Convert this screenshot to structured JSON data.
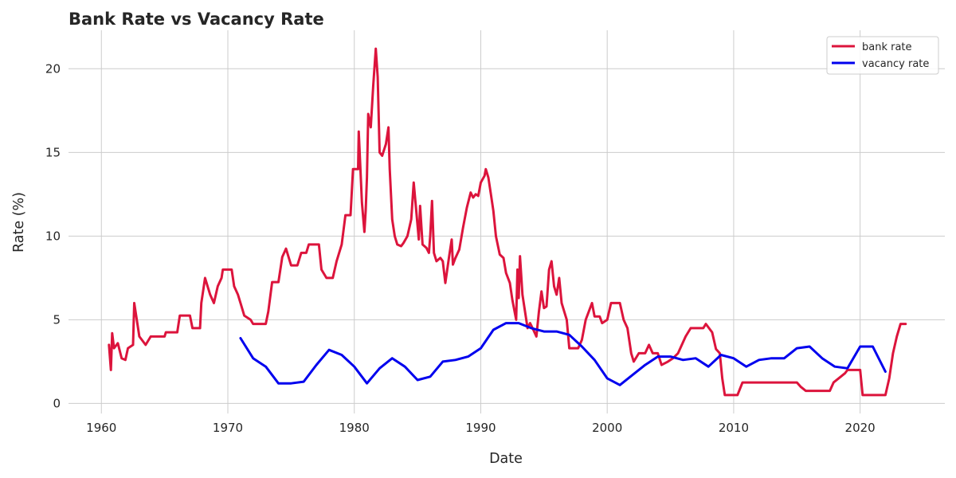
{
  "chart_data": {
    "type": "line",
    "title": "Bank Rate vs Vacancy Rate",
    "xlabel": "Date",
    "ylabel": "Rate (%)",
    "xlim": [
      1957.4,
      2026.7
    ],
    "ylim": [
      -0.6,
      22.3
    ],
    "x_ticks": [
      1960,
      1970,
      1980,
      1990,
      2000,
      2010,
      2020
    ],
    "y_ticks": [
      0,
      5,
      10,
      15,
      20
    ],
    "grid": true,
    "legend_position": "top-right",
    "series": [
      {
        "name": "bank rate",
        "color": "#dc143c",
        "points": [
          [
            1960.6,
            3.5
          ],
          [
            1960.75,
            2.0
          ],
          [
            1960.85,
            4.2
          ],
          [
            1961.0,
            3.3
          ],
          [
            1961.3,
            3.6
          ],
          [
            1961.6,
            2.7
          ],
          [
            1961.9,
            2.6
          ],
          [
            1962.1,
            3.3
          ],
          [
            1962.5,
            3.5
          ],
          [
            1962.6,
            6.0
          ],
          [
            1962.8,
            5.0
          ],
          [
            1963.0,
            4.0
          ],
          [
            1963.5,
            3.5
          ],
          [
            1963.9,
            4.0
          ],
          [
            1965.0,
            4.0
          ],
          [
            1965.1,
            4.25
          ],
          [
            1966.0,
            4.25
          ],
          [
            1966.2,
            5.25
          ],
          [
            1967.0,
            5.25
          ],
          [
            1967.2,
            4.5
          ],
          [
            1967.8,
            4.5
          ],
          [
            1967.9,
            6.0
          ],
          [
            1968.2,
            7.5
          ],
          [
            1968.6,
            6.5
          ],
          [
            1968.9,
            6.0
          ],
          [
            1969.2,
            7.0
          ],
          [
            1969.5,
            7.5
          ],
          [
            1969.6,
            8.0
          ],
          [
            1970.3,
            8.0
          ],
          [
            1970.5,
            7.0
          ],
          [
            1970.8,
            6.5
          ],
          [
            1971.0,
            6.0
          ],
          [
            1971.3,
            5.25
          ],
          [
            1971.8,
            5.0
          ],
          [
            1972.0,
            4.75
          ],
          [
            1972.5,
            4.75
          ],
          [
            1973.0,
            4.75
          ],
          [
            1973.2,
            5.5
          ],
          [
            1973.5,
            7.25
          ],
          [
            1974.0,
            7.25
          ],
          [
            1974.3,
            8.75
          ],
          [
            1974.6,
            9.25
          ],
          [
            1975.0,
            8.25
          ],
          [
            1975.5,
            8.25
          ],
          [
            1975.8,
            9.0
          ],
          [
            1976.2,
            9.0
          ],
          [
            1976.4,
            9.5
          ],
          [
            1977.2,
            9.5
          ],
          [
            1977.4,
            8.0
          ],
          [
            1977.8,
            7.5
          ],
          [
            1978.3,
            7.5
          ],
          [
            1978.6,
            8.5
          ],
          [
            1979.0,
            9.5
          ],
          [
            1979.3,
            11.25
          ],
          [
            1979.7,
            11.25
          ],
          [
            1979.9,
            14.0
          ],
          [
            1980.3,
            14.0
          ],
          [
            1980.35,
            16.25
          ],
          [
            1980.6,
            12.0
          ],
          [
            1980.8,
            10.25
          ],
          [
            1980.9,
            11.5
          ],
          [
            1981.0,
            13.5
          ],
          [
            1981.1,
            17.3
          ],
          [
            1981.3,
            16.5
          ],
          [
            1981.5,
            19.0
          ],
          [
            1981.7,
            21.2
          ],
          [
            1981.85,
            19.5
          ],
          [
            1982.0,
            15.0
          ],
          [
            1982.2,
            14.8
          ],
          [
            1982.5,
            15.5
          ],
          [
            1982.7,
            16.5
          ],
          [
            1982.8,
            14.0
          ],
          [
            1983.0,
            11.0
          ],
          [
            1983.2,
            10.0
          ],
          [
            1983.4,
            9.5
          ],
          [
            1983.7,
            9.4
          ],
          [
            1983.9,
            9.6
          ],
          [
            1984.2,
            10.0
          ],
          [
            1984.5,
            11.0
          ],
          [
            1984.7,
            13.2
          ],
          [
            1984.9,
            11.5
          ],
          [
            1985.1,
            9.8
          ],
          [
            1985.2,
            11.8
          ],
          [
            1985.4,
            9.5
          ],
          [
            1985.7,
            9.3
          ],
          [
            1985.9,
            9.0
          ],
          [
            1986.0,
            10.0
          ],
          [
            1986.15,
            12.1
          ],
          [
            1986.3,
            9.0
          ],
          [
            1986.5,
            8.5
          ],
          [
            1986.8,
            8.7
          ],
          [
            1987.0,
            8.5
          ],
          [
            1987.2,
            7.2
          ],
          [
            1987.5,
            8.8
          ],
          [
            1987.7,
            9.8
          ],
          [
            1987.8,
            8.3
          ],
          [
            1988.0,
            8.7
          ],
          [
            1988.3,
            9.2
          ],
          [
            1988.6,
            10.5
          ],
          [
            1988.9,
            11.7
          ],
          [
            1989.2,
            12.6
          ],
          [
            1989.4,
            12.3
          ],
          [
            1989.6,
            12.5
          ],
          [
            1989.8,
            12.4
          ],
          [
            1990.0,
            13.2
          ],
          [
            1990.3,
            13.6
          ],
          [
            1990.4,
            14.0
          ],
          [
            1990.6,
            13.5
          ],
          [
            1990.8,
            12.5
          ],
          [
            1991.0,
            11.5
          ],
          [
            1991.2,
            10.0
          ],
          [
            1991.5,
            8.9
          ],
          [
            1991.8,
            8.7
          ],
          [
            1992.0,
            7.8
          ],
          [
            1992.3,
            7.2
          ],
          [
            1992.5,
            6.2
          ],
          [
            1992.8,
            5.0
          ],
          [
            1992.9,
            8.0
          ],
          [
            1993.0,
            6.3
          ],
          [
            1993.1,
            8.8
          ],
          [
            1993.3,
            6.5
          ],
          [
            1993.5,
            5.5
          ],
          [
            1993.7,
            4.5
          ],
          [
            1993.9,
            4.8
          ],
          [
            1994.1,
            4.5
          ],
          [
            1994.4,
            4.0
          ],
          [
            1994.6,
            5.5
          ],
          [
            1994.8,
            6.7
          ],
          [
            1995.0,
            5.7
          ],
          [
            1995.2,
            5.8
          ],
          [
            1995.4,
            8.0
          ],
          [
            1995.6,
            8.5
          ],
          [
            1995.8,
            7.0
          ],
          [
            1996.0,
            6.5
          ],
          [
            1996.2,
            7.5
          ],
          [
            1996.4,
            6.0
          ],
          [
            1996.6,
            5.5
          ],
          [
            1996.8,
            5.0
          ],
          [
            1997.0,
            3.3
          ],
          [
            1997.7,
            3.3
          ],
          [
            1998.0,
            3.8
          ],
          [
            1998.3,
            5.0
          ],
          [
            1998.8,
            6.0
          ],
          [
            1999.0,
            5.2
          ],
          [
            1999.4,
            5.2
          ],
          [
            1999.6,
            4.8
          ],
          [
            2000.0,
            5.0
          ],
          [
            2000.3,
            6.0
          ],
          [
            2001.0,
            6.0
          ],
          [
            2001.3,
            5.0
          ],
          [
            2001.6,
            4.5
          ],
          [
            2001.9,
            3.0
          ],
          [
            2002.1,
            2.5
          ],
          [
            2002.5,
            3.0
          ],
          [
            2003.0,
            3.0
          ],
          [
            2003.3,
            3.5
          ],
          [
            2003.6,
            3.0
          ],
          [
            2004.0,
            3.0
          ],
          [
            2004.3,
            2.3
          ],
          [
            2004.8,
            2.5
          ],
          [
            2005.2,
            2.7
          ],
          [
            2005.6,
            3.0
          ],
          [
            2006.2,
            4.0
          ],
          [
            2006.6,
            4.5
          ],
          [
            2007.6,
            4.5
          ],
          [
            2007.8,
            4.75
          ],
          [
            2008.3,
            4.25
          ],
          [
            2008.6,
            3.25
          ],
          [
            2008.9,
            3.0
          ],
          [
            2009.1,
            1.5
          ],
          [
            2009.3,
            0.5
          ],
          [
            2010.3,
            0.5
          ],
          [
            2010.7,
            1.25
          ],
          [
            2015.0,
            1.25
          ],
          [
            2015.3,
            1.0
          ],
          [
            2015.7,
            0.75
          ],
          [
            2017.6,
            0.75
          ],
          [
            2017.9,
            1.25
          ],
          [
            2018.3,
            1.5
          ],
          [
            2018.8,
            1.8
          ],
          [
            2019.0,
            2.0
          ],
          [
            2020.0,
            2.0
          ],
          [
            2020.2,
            0.5
          ],
          [
            2022.0,
            0.5
          ],
          [
            2022.3,
            1.5
          ],
          [
            2022.6,
            3.0
          ],
          [
            2022.9,
            4.0
          ],
          [
            2023.2,
            4.75
          ],
          [
            2023.6,
            4.75
          ]
        ]
      },
      {
        "name": "vacancy rate",
        "color": "#0000ee",
        "points": [
          [
            1971.0,
            3.9
          ],
          [
            1972.0,
            2.7
          ],
          [
            1973.0,
            2.2
          ],
          [
            1974.0,
            1.2
          ],
          [
            1975.0,
            1.2
          ],
          [
            1976.0,
            1.3
          ],
          [
            1977.0,
            2.3
          ],
          [
            1978.0,
            3.2
          ],
          [
            1979.0,
            2.9
          ],
          [
            1980.0,
            2.2
          ],
          [
            1981.0,
            1.2
          ],
          [
            1982.0,
            2.1
          ],
          [
            1983.0,
            2.7
          ],
          [
            1984.0,
            2.2
          ],
          [
            1985.0,
            1.4
          ],
          [
            1986.0,
            1.6
          ],
          [
            1987.0,
            2.5
          ],
          [
            1988.0,
            2.6
          ],
          [
            1989.0,
            2.8
          ],
          [
            1990.0,
            3.3
          ],
          [
            1991.0,
            4.4
          ],
          [
            1992.0,
            4.8
          ],
          [
            1993.0,
            4.8
          ],
          [
            1994.0,
            4.5
          ],
          [
            1995.0,
            4.3
          ],
          [
            1996.0,
            4.3
          ],
          [
            1997.0,
            4.1
          ],
          [
            1998.0,
            3.4
          ],
          [
            1999.0,
            2.6
          ],
          [
            2000.0,
            1.5
          ],
          [
            2001.0,
            1.1
          ],
          [
            2002.0,
            1.7
          ],
          [
            2003.0,
            2.3
          ],
          [
            2004.0,
            2.8
          ],
          [
            2005.0,
            2.8
          ],
          [
            2006.0,
            2.6
          ],
          [
            2007.0,
            2.7
          ],
          [
            2008.0,
            2.2
          ],
          [
            2009.0,
            2.9
          ],
          [
            2010.0,
            2.7
          ],
          [
            2011.0,
            2.2
          ],
          [
            2012.0,
            2.6
          ],
          [
            2013.0,
            2.7
          ],
          [
            2014.0,
            2.7
          ],
          [
            2015.0,
            3.3
          ],
          [
            2016.0,
            3.4
          ],
          [
            2017.0,
            2.7
          ],
          [
            2018.0,
            2.2
          ],
          [
            2019.0,
            2.1
          ],
          [
            2020.0,
            3.4
          ],
          [
            2021.0,
            3.4
          ],
          [
            2022.0,
            1.9
          ]
        ]
      }
    ]
  }
}
